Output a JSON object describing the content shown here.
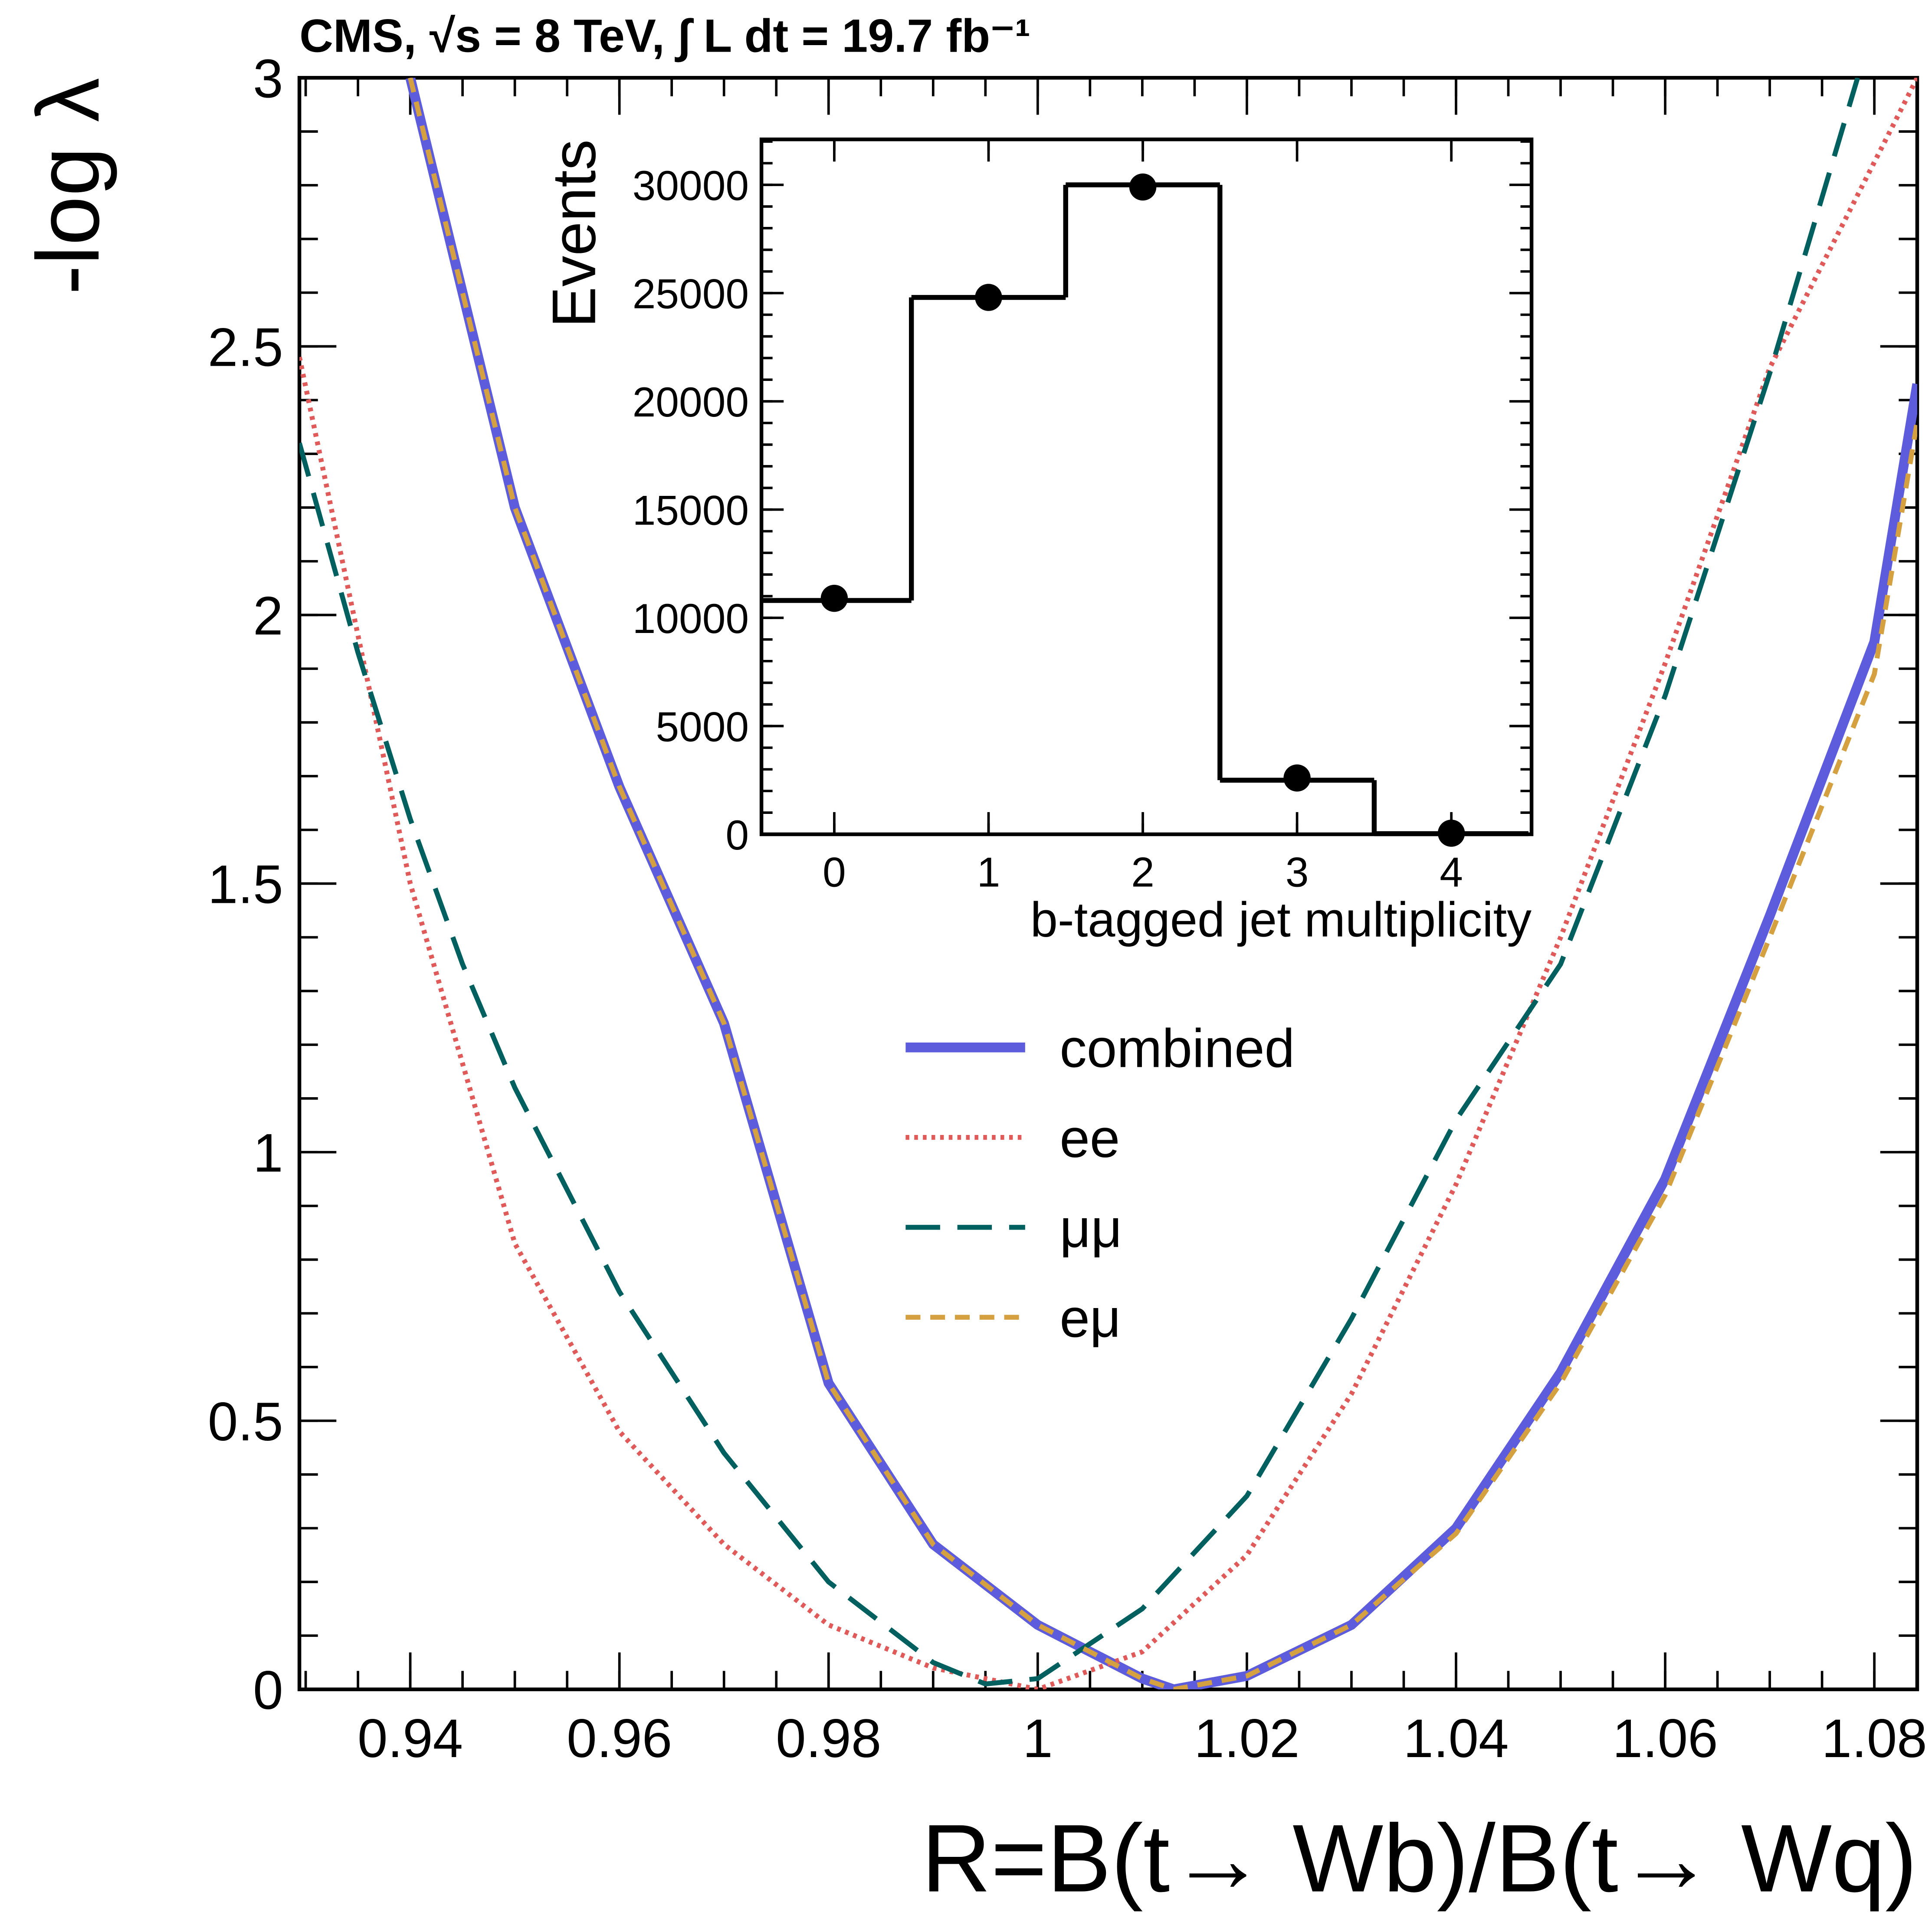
{
  "chart_data": [
    {
      "type": "line",
      "title": "CMS,  √s = 8 TeV,  ∫ L dt = 19.7 fb⁻¹",
      "x_label": "R=B(t→ Wb)/B(t→ Wq)",
      "y_label": "-log λ",
      "xlim": [
        0.9294,
        1.0841
      ],
      "ylim": [
        0,
        3
      ],
      "xticks": [
        0.94,
        0.96,
        0.98,
        1,
        1.02,
        1.04,
        1.06,
        1.08
      ],
      "yticks": [
        0,
        0.5,
        1,
        1.5,
        2,
        2.5,
        3
      ],
      "series": [
        {
          "name": "combined",
          "color": "#5c5cdc",
          "style": "solid",
          "x": [
            0.94,
            0.95,
            0.96,
            0.97,
            0.98,
            0.99,
            1.0,
            1.01,
            1.013,
            1.02,
            1.03,
            1.04,
            1.05,
            1.06,
            1.07,
            1.08,
            1.0841
          ],
          "values": [
            3.0,
            2.2,
            1.68,
            1.24,
            0.57,
            0.27,
            0.12,
            0.02,
            0.0,
            0.025,
            0.12,
            0.3,
            0.59,
            0.95,
            1.44,
            1.95,
            2.43
          ]
        },
        {
          "name": "ee",
          "color": "#e05a5a",
          "style": "dotted",
          "x": [
            0.9294,
            0.94,
            0.95,
            0.96,
            0.97,
            0.98,
            0.99,
            1.0,
            1.01,
            1.02,
            1.03,
            1.04,
            1.05,
            1.06,
            1.07,
            1.0841
          ],
          "values": [
            2.48,
            1.5,
            0.83,
            0.48,
            0.27,
            0.12,
            0.04,
            0.0,
            0.07,
            0.25,
            0.55,
            0.94,
            1.4,
            1.91,
            2.46,
            3.0
          ]
        },
        {
          "name": "μμ",
          "color": "#006060",
          "style": "dashed",
          "x": [
            0.9294,
            0.935,
            0.94,
            0.945,
            0.95,
            0.96,
            0.97,
            0.98,
            0.99,
            0.995,
            1.0,
            1.01,
            1.02,
            1.03,
            1.04,
            1.05,
            1.06,
            1.07,
            1.0784
          ],
          "values": [
            2.32,
            1.93,
            1.62,
            1.35,
            1.12,
            0.74,
            0.44,
            0.2,
            0.05,
            0.01,
            0.02,
            0.15,
            0.36,
            0.69,
            1.06,
            1.35,
            1.85,
            2.45,
            3.0
          ]
        },
        {
          "name": "eμ",
          "color": "#d4a040",
          "style": "short-dashed",
          "x": [
            0.94,
            0.95,
            0.96,
            0.97,
            0.98,
            0.99,
            1.0,
            1.01,
            1.013,
            1.02,
            1.03,
            1.04,
            1.05,
            1.06,
            1.07,
            1.08,
            1.0841
          ],
          "values": [
            3.0,
            2.2,
            1.68,
            1.24,
            0.57,
            0.27,
            0.12,
            0.02,
            0.0,
            0.025,
            0.12,
            0.29,
            0.57,
            0.92,
            1.4,
            1.89,
            2.36
          ]
        }
      ]
    },
    {
      "type": "histogram",
      "x_label": "b-tagged jet multiplicity",
      "y_label": "Events",
      "xlim": [
        -0.472,
        4.52
      ],
      "ylim": [
        0,
        32100
      ],
      "xticks": [
        0,
        1,
        2,
        3,
        4
      ],
      "yticks": [
        0,
        5000,
        10000,
        15000,
        20000,
        25000,
        30000
      ],
      "bins": [
        -0.5,
        0.5,
        1.5,
        2.5,
        3.5,
        4.5
      ],
      "values": [
        10800,
        24800,
        30000,
        2500,
        30
      ],
      "data_points": [
        10900,
        24800,
        29900,
        2600,
        50
      ],
      "color": "#000000"
    }
  ]
}
